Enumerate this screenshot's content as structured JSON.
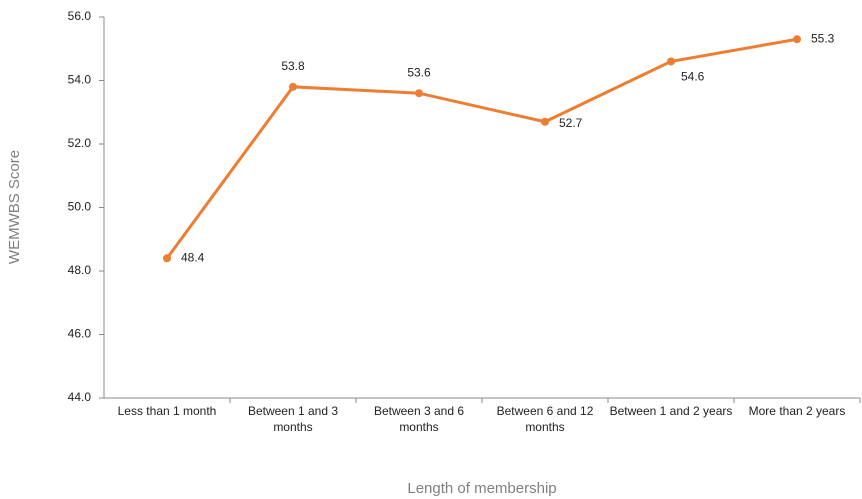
{
  "chart_data": {
    "type": "line",
    "categories": [
      "Less than 1 month",
      "Between 1 and 3 months",
      "Between 3 and 6 months",
      "Between 6 and 12 months",
      "Between 1 and 2 years",
      "More than 2 years"
    ],
    "series": [
      {
        "name": "WEMWBS Score",
        "color": "#ed7d31",
        "values": [
          48.4,
          53.8,
          53.6,
          52.7,
          54.6,
          55.3
        ]
      }
    ],
    "ylim": [
      44,
      56
    ],
    "yticks": [
      {
        "value": 44,
        "label": "44.0"
      },
      {
        "value": 46,
        "label": "46.0"
      },
      {
        "value": 48,
        "label": "48.0"
      },
      {
        "value": 50,
        "label": "50.0"
      },
      {
        "value": 52,
        "label": "52.0"
      },
      {
        "value": 54,
        "label": "54.0"
      },
      {
        "value": 56,
        "label": "56.0"
      }
    ],
    "ylabel": "WEMWBS Score",
    "xlabel": "Length of membership"
  }
}
